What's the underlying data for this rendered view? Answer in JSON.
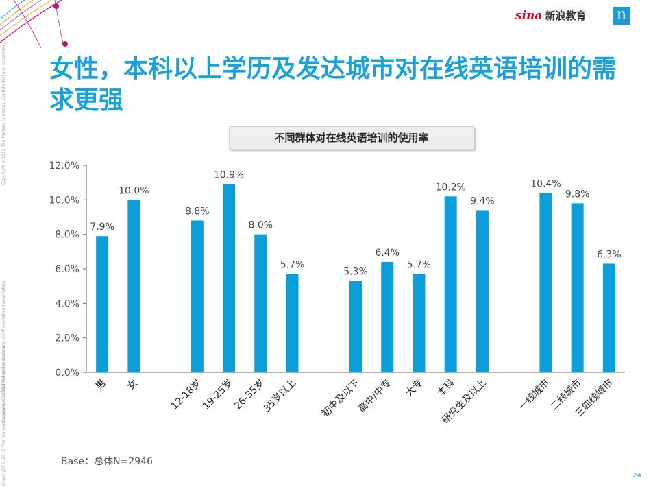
{
  "side_text": {
    "upper": "Copyright ©2012 The Nielsen Company. Confidential and proprietary.",
    "middle": "Copyright ©2012 The Nielsen Company. Confidential and proprietary.",
    "lower": "Copyright ©2012 The Nielsen Company. Confidential and proprietary."
  },
  "brand": {
    "sina": "sina",
    "cn": "新浪教育",
    "logo_letter": "n"
  },
  "title": "女性，本科以上学历及发达城市对在线英语培训的需求更强",
  "base_note": "Base：总体N=2946",
  "page_number": "24",
  "colors": {
    "bar": "#0b9ed8",
    "title": "#1aa1d8",
    "axis": "#666666"
  },
  "chart_data": {
    "type": "bar",
    "title": "不同群体对在线英语培训的使用率",
    "xlabel": "",
    "ylabel": "",
    "ylim": [
      0,
      12
    ],
    "yticks": [
      "0.0%",
      "2.0%",
      "4.0%",
      "6.0%",
      "8.0%",
      "10.0%",
      "12.0%"
    ],
    "grid": false,
    "legend": "none",
    "categories": [
      "男",
      "女",
      "",
      "12-18岁",
      "19-25岁",
      "26-35岁",
      "35岁以上",
      "",
      "初中及以下",
      "高中/中专",
      "大专",
      "本科",
      "研究生及以上",
      "",
      "一线城市",
      "二线城市",
      "三四线城市"
    ],
    "values": [
      7.9,
      10.0,
      null,
      8.8,
      10.9,
      8.0,
      5.7,
      null,
      5.3,
      6.4,
      5.7,
      10.2,
      9.4,
      null,
      10.4,
      9.8,
      6.3
    ],
    "value_labels": [
      "7.9%",
      "10.0%",
      "",
      "8.8%",
      "10.9%",
      "8.0%",
      "5.7%",
      "",
      "5.3%",
      "6.4%",
      "5.7%",
      "10.2%",
      "9.4%",
      "",
      "10.4%",
      "9.8%",
      "6.3%"
    ]
  }
}
